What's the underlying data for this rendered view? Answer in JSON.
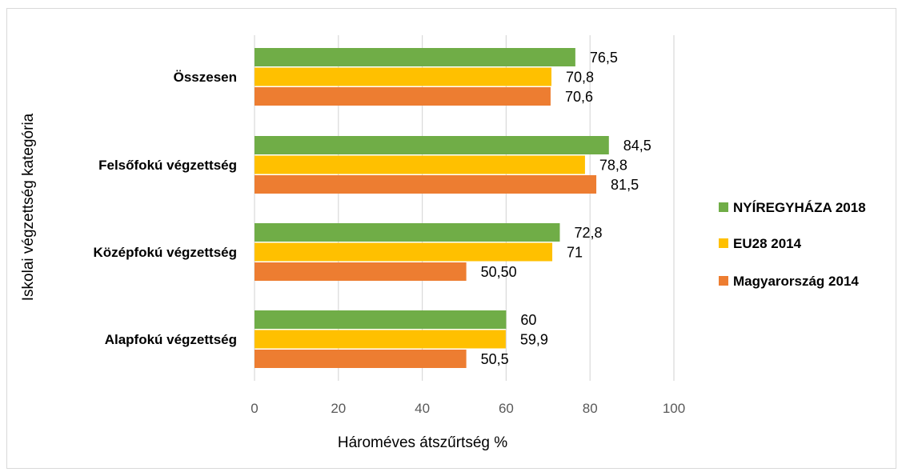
{
  "chart_data": {
    "type": "bar",
    "orientation": "horizontal",
    "categories": [
      "Összesen",
      "Felsőfokú végzettség",
      "Középfokú végzettség",
      "Alapfokú végzettség"
    ],
    "series": [
      {
        "name": "NYÍREGYHÁZA 2018",
        "color": "#70ad47",
        "values": [
          76.5,
          84.5,
          72.8,
          60
        ],
        "labels": [
          "76,5",
          "84,5",
          "72,8",
          "60"
        ]
      },
      {
        "name": "EU28 2014",
        "color": "#ffc000",
        "values": [
          70.8,
          78.8,
          71,
          59.9
        ],
        "labels": [
          "70,8",
          "78,8",
          "71",
          "59,9"
        ]
      },
      {
        "name": "Magyarország 2014",
        "color": "#ed7d31",
        "values": [
          70.6,
          81.5,
          50.5,
          50.5
        ],
        "labels": [
          "70,6",
          "81,5",
          "50,50",
          "50,5"
        ]
      }
    ],
    "xlim": [
      0,
      100
    ],
    "xticks": [
      "0",
      "20",
      "40",
      "60",
      "80",
      "100"
    ],
    "xlabel": "Hároméves átszűrtség %",
    "ylabel": "Iskolai végzettség kategória",
    "grid": "vertical",
    "legend_position": "right"
  }
}
